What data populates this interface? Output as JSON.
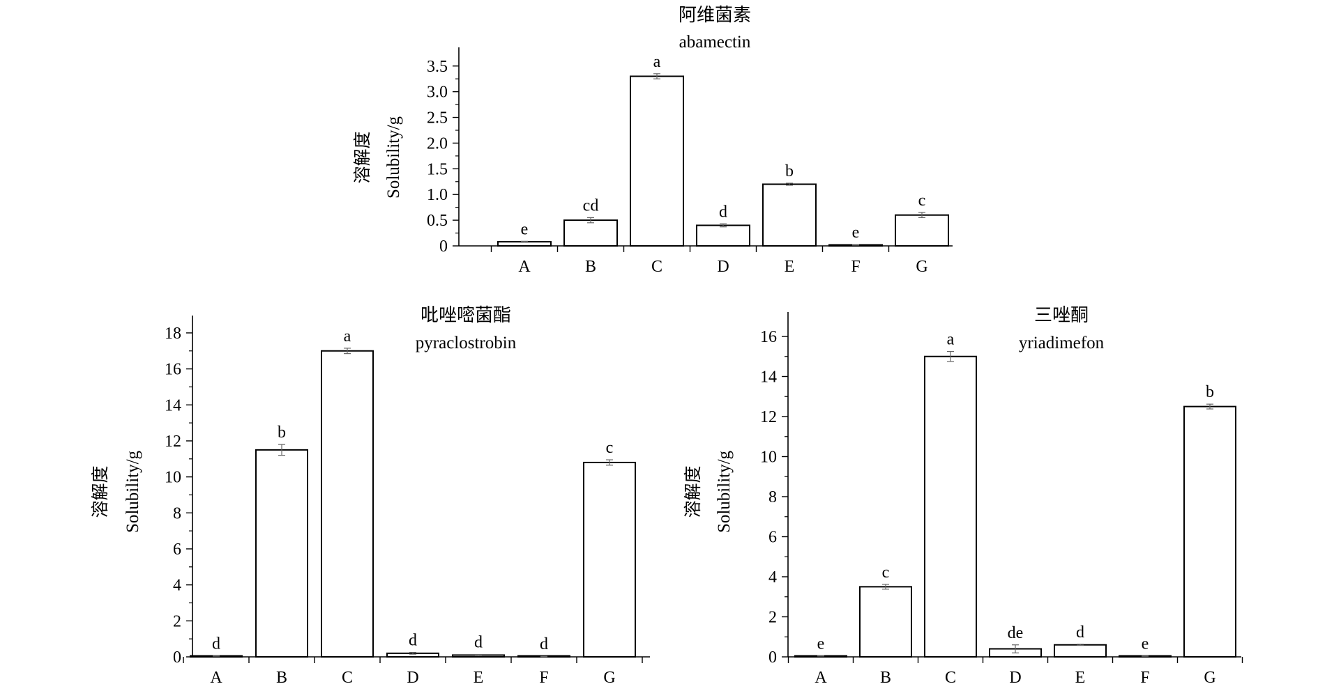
{
  "chart_data": [
    {
      "type": "bar",
      "title": "阿维菌素",
      "subtitle": "abamectin",
      "ylabel_cn": "溶解度",
      "ylabel": "Solubility/g",
      "xlabel": "",
      "categories": [
        "A",
        "B",
        "C",
        "D",
        "E",
        "F",
        "G"
      ],
      "values": [
        0.08,
        0.5,
        3.3,
        0.4,
        1.2,
        0.02,
        0.6
      ],
      "errors": [
        0.01,
        0.05,
        0.05,
        0.03,
        0.02,
        0.005,
        0.05
      ],
      "letters": [
        "e",
        "cd",
        "a",
        "d",
        "b",
        "e",
        "c"
      ],
      "ylim": [
        0,
        3.7
      ],
      "yticks": [
        0,
        0.5,
        1.0,
        1.5,
        2.0,
        2.5,
        3.0,
        3.5
      ],
      "ytick_labels": [
        "0",
        "0.5",
        "1.0",
        "1.5",
        "2.0",
        "2.5",
        "3.0",
        "3.5"
      ]
    },
    {
      "type": "bar",
      "title": "吡唑嘧菌酯",
      "subtitle": "pyraclostrobin",
      "ylabel_cn": "溶解度",
      "ylabel": "Solubility/g",
      "xlabel": "",
      "categories": [
        "A",
        "B",
        "C",
        "D",
        "E",
        "F",
        "G"
      ],
      "values": [
        0.05,
        11.5,
        17.0,
        0.2,
        0.1,
        0.02,
        10.8
      ],
      "errors": [
        0.01,
        0.3,
        0.15,
        0.05,
        0.03,
        0.01,
        0.15
      ],
      "letters": [
        "d",
        "b",
        "a",
        "d",
        "d",
        "d",
        "c"
      ],
      "ylim": [
        0,
        18.5
      ],
      "yticks": [
        0,
        2,
        4,
        6,
        8,
        10,
        12,
        14,
        16,
        18
      ],
      "ytick_labels": [
        "0",
        "2",
        "4",
        "6",
        "8",
        "10",
        "12",
        "14",
        "16",
        "18"
      ]
    },
    {
      "type": "bar",
      "title": "三唑酮",
      "subtitle": "yriadimefon",
      "ylabel_cn": "溶解度",
      "ylabel": "Solubility/g",
      "xlabel": "",
      "categories": [
        "A",
        "B",
        "C",
        "D",
        "E",
        "F",
        "G"
      ],
      "values": [
        0.05,
        3.5,
        15.0,
        0.4,
        0.6,
        0.04,
        12.5
      ],
      "errors": [
        0.01,
        0.12,
        0.25,
        0.2,
        0.03,
        0.01,
        0.12
      ],
      "letters": [
        "e",
        "c",
        "a",
        "de",
        "d",
        "e",
        "b"
      ],
      "ylim": [
        0,
        16.8
      ],
      "yticks": [
        0,
        2,
        4,
        6,
        8,
        10,
        12,
        14,
        16
      ],
      "ytick_labels": [
        "0",
        "2",
        "4",
        "6",
        "8",
        "10",
        "12",
        "14",
        "16"
      ]
    }
  ]
}
